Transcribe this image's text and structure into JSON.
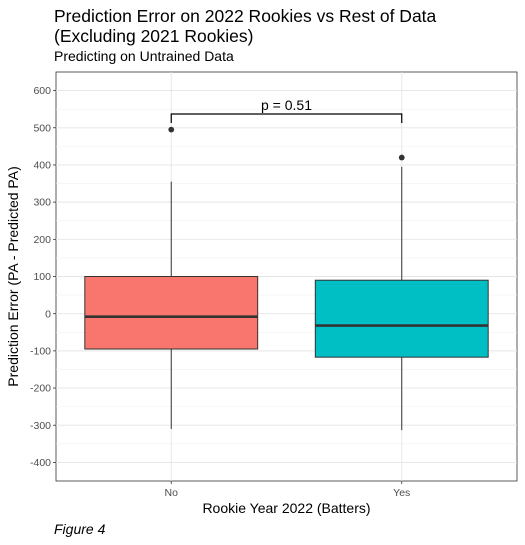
{
  "chart_data": {
    "type": "boxplot",
    "title": "Prediction Error on 2022 Rookies vs Rest of Data\n(Excluding 2021 Rookies)",
    "subtitle": "Predicting on Untrained Data",
    "caption": "Figure 4",
    "xlabel": "Rookie Year 2022 (Batters)",
    "ylabel": "Prediction Error (PA - Predicted PA)",
    "ylim": [
      -450,
      650
    ],
    "yticks": [
      -400,
      -300,
      -200,
      -100,
      0,
      100,
      200,
      300,
      400,
      500,
      600
    ],
    "categories": [
      "No",
      "Yes"
    ],
    "grid": true,
    "boxes": [
      {
        "category": "No",
        "color": "#F8766D",
        "whisker_low": -310,
        "q1": -95,
        "median": -8,
        "q3": 100,
        "whisker_high": 355,
        "outliers": [
          495
        ]
      },
      {
        "category": "Yes",
        "color": "#00BFC4",
        "whisker_low": -313,
        "q1": -117,
        "median": -32,
        "q3": 90,
        "whisker_high": 395,
        "outliers": [
          420
        ]
      }
    ],
    "annotation": {
      "text": "p = 0.51",
      "y": 537,
      "tick_low": 513
    }
  }
}
